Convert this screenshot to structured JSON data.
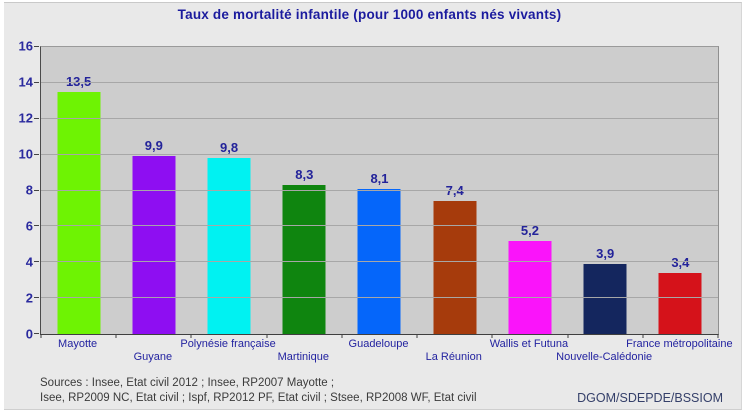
{
  "title": "Taux de mortalité infantile (pour 1000 enfants nés vivants)",
  "chart_data": {
    "type": "bar",
    "categories": [
      "Mayotte",
      "Guyane",
      "Polynésie française",
      "Martinique",
      "Guadeloupe",
      "La Réunion",
      "Wallis et Futuna",
      "Nouvelle-Calédonie",
      "France métropolitaine"
    ],
    "values": [
      13.5,
      9.9,
      9.8,
      8.3,
      8.1,
      7.4,
      5.2,
      3.9,
      3.4
    ],
    "value_labels": [
      "13,5",
      "9,9",
      "9,8",
      "8,3",
      "8,1",
      "7,4",
      "5,2",
      "3,9",
      "3,4"
    ],
    "bar_colors": [
      "#6ef303",
      "#8e0ef2",
      "#00f2f2",
      "#0f850f",
      "#0566fa",
      "#a63b0c",
      "#fa14fa",
      "#14265e",
      "#d5121a"
    ],
    "title": "Taux de mortalité infantile (pour 1000 enfants nés vivants)",
    "xlabel": "",
    "ylabel": "",
    "ylim": [
      0,
      16
    ],
    "yticks": [
      0,
      2,
      4,
      6,
      8,
      10,
      12,
      14,
      16
    ],
    "grid": true,
    "legend": "none",
    "label_rows": [
      1,
      2,
      1,
      2,
      1,
      2,
      1,
      2,
      1
    ]
  },
  "colors": {
    "title_text": "#1b1b9e",
    "tick_text": "#2a2a9e",
    "value_label_text": "#23239a",
    "category_text": "#2323a0",
    "plot_background": "#cdcdcd",
    "panel_background": "#e9e9e9",
    "gridline": "#a7a7a7"
  },
  "footer": {
    "sources_line1": "Sources : Insee, Etat civil 2012 ; Insee, RP2007 Mayotte ;",
    "sources_line2": "Isee, RP2009 NC, Etat civil ; Ispf, RP2012 PF, Etat civil ; Stsee, RP2008 WF, Etat civil",
    "credit": "DGOM/SDEPDE/BSSIOM"
  }
}
